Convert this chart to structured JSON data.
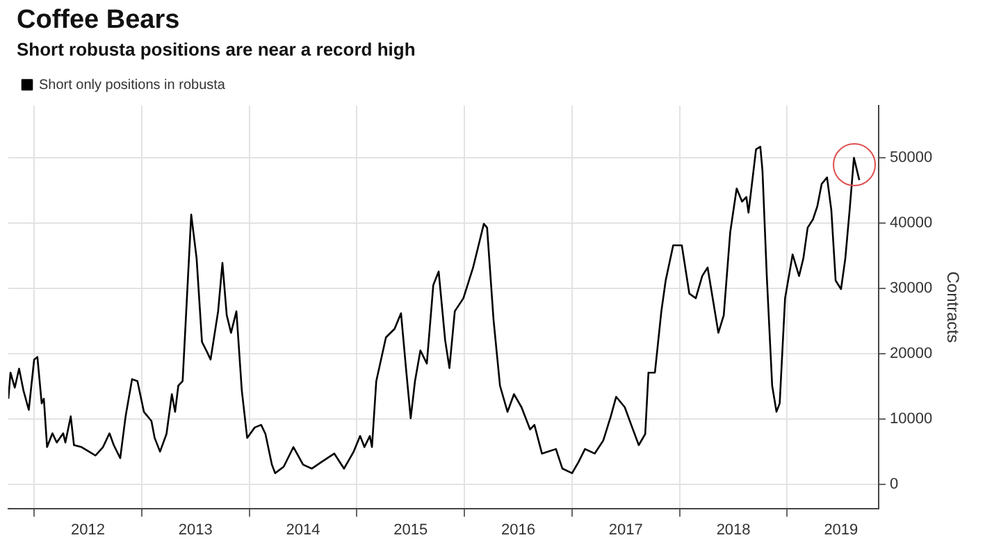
{
  "chart_data": {
    "type": "line",
    "title": "Coffee Bears",
    "subtitle": "Short robusta positions are near a record high",
    "ylabel": "Contracts",
    "legend": "top left",
    "grid": true,
    "marker": "none",
    "line_style": "solid",
    "xlim": [
      2011.76,
      2019.85
    ],
    "ylim": [
      -3700,
      58000
    ],
    "xticks": [
      {
        "value": 2012,
        "label": null
      },
      {
        "value": 2012.5,
        "label": "2012"
      },
      {
        "value": 2013,
        "label": null
      },
      {
        "value": 2013.5,
        "label": "2013"
      },
      {
        "value": 2014,
        "label": null
      },
      {
        "value": 2014.5,
        "label": "2014"
      },
      {
        "value": 2015,
        "label": null
      },
      {
        "value": 2015.5,
        "label": "2015"
      },
      {
        "value": 2016,
        "label": null
      },
      {
        "value": 2016.5,
        "label": "2016"
      },
      {
        "value": 2017,
        "label": null
      },
      {
        "value": 2017.5,
        "label": "2017"
      },
      {
        "value": 2018,
        "label": null
      },
      {
        "value": 2018.5,
        "label": "2018"
      },
      {
        "value": 2019,
        "label": null
      },
      {
        "value": 2019.5,
        "label": "2019"
      }
    ],
    "yticks": [
      0,
      10000,
      20000,
      30000,
      40000,
      50000
    ],
    "series": [
      {
        "name": "Short only positions in robusta",
        "color": "#000000",
        "x": [
          2011.76,
          2011.78,
          2011.82,
          2011.86,
          2011.9,
          2011.95,
          2012.0,
          2012.03,
          2012.07,
          2012.09,
          2012.12,
          2012.17,
          2012.21,
          2012.27,
          2012.29,
          2012.34,
          2012.37,
          2012.44,
          2012.51,
          2012.57,
          2012.64,
          2012.7,
          2012.74,
          2012.8,
          2012.85,
          2012.91,
          2012.96,
          2013.02,
          2013.09,
          2013.12,
          2013.17,
          2013.23,
          2013.28,
          2013.31,
          2013.34,
          2013.38,
          2013.46,
          2013.51,
          2013.56,
          2013.6,
          2013.64,
          2013.71,
          2013.75,
          2013.79,
          2013.83,
          2013.88,
          2013.93,
          2013.98,
          2014.05,
          2014.11,
          2014.15,
          2014.21,
          2014.24,
          2014.32,
          2014.41,
          2014.5,
          2014.58,
          2014.67,
          2014.79,
          2014.88,
          2014.97,
          2015.03,
          2015.07,
          2015.12,
          2015.14,
          2015.18,
          2015.27,
          2015.35,
          2015.41,
          2015.46,
          2015.5,
          2015.54,
          2015.59,
          2015.65,
          2015.71,
          2015.76,
          2015.82,
          2015.86,
          2015.91,
          2015.99,
          2016.08,
          2016.18,
          2016.21,
          2016.27,
          2016.33,
          2016.4,
          2016.46,
          2016.53,
          2016.61,
          2016.65,
          2016.72,
          2016.85,
          2016.91,
          2017.0,
          2017.06,
          2017.12,
          2017.21,
          2017.29,
          2017.36,
          2017.41,
          2017.49,
          2017.55,
          2017.62,
          2017.68,
          2017.71,
          2017.77,
          2017.83,
          2017.87,
          2017.94,
          2018.02,
          2018.09,
          2018.15,
          2018.21,
          2018.26,
          2018.3,
          2018.36,
          2018.41,
          2018.47,
          2018.53,
          2018.58,
          2018.62,
          2018.64,
          2018.71,
          2018.75,
          2018.77,
          2018.81,
          2018.86,
          2018.9,
          2018.93,
          2018.98,
          2019.05,
          2019.11,
          2019.15,
          2019.19,
          2019.24,
          2019.28,
          2019.32,
          2019.37,
          2019.41,
          2019.45,
          2019.5,
          2019.54,
          2019.58,
          2019.62,
          2019.67
        ],
        "values": [
          13100,
          17100,
          14800,
          17700,
          14400,
          11400,
          19100,
          19500,
          12400,
          13100,
          5700,
          7800,
          6400,
          7800,
          6400,
          10400,
          6000,
          5700,
          5000,
          4400,
          5700,
          7800,
          6000,
          4000,
          10400,
          16100,
          15800,
          11100,
          9700,
          7100,
          5000,
          7700,
          13800,
          11100,
          15100,
          15800,
          41300,
          34600,
          21800,
          20500,
          19100,
          26500,
          33900,
          25900,
          23200,
          26500,
          14400,
          7100,
          8700,
          9100,
          7700,
          3000,
          1700,
          2700,
          5700,
          3000,
          2400,
          3400,
          4700,
          2400,
          5000,
          7400,
          5700,
          7400,
          5700,
          15800,
          22500,
          23800,
          26200,
          17100,
          10100,
          15800,
          20500,
          18500,
          30500,
          32600,
          22100,
          17800,
          26500,
          28500,
          33200,
          39900,
          39300,
          25200,
          15100,
          11100,
          13800,
          11800,
          8400,
          9100,
          4700,
          5400,
          2400,
          1700,
          3400,
          5400,
          4700,
          6700,
          10400,
          13400,
          11800,
          9100,
          6000,
          7700,
          17100,
          17100,
          26500,
          31200,
          36600,
          36600,
          29200,
          28500,
          31900,
          33200,
          29200,
          23200,
          25900,
          38600,
          45300,
          43300,
          44000,
          41600,
          51300,
          51700,
          48000,
          31900,
          15100,
          11100,
          12400,
          28500,
          35200,
          31900,
          34600,
          39300,
          40600,
          42600,
          46000,
          47000,
          42000,
          31200,
          29900,
          34600,
          42000,
          50000,
          46600
        ]
      }
    ]
  }
}
